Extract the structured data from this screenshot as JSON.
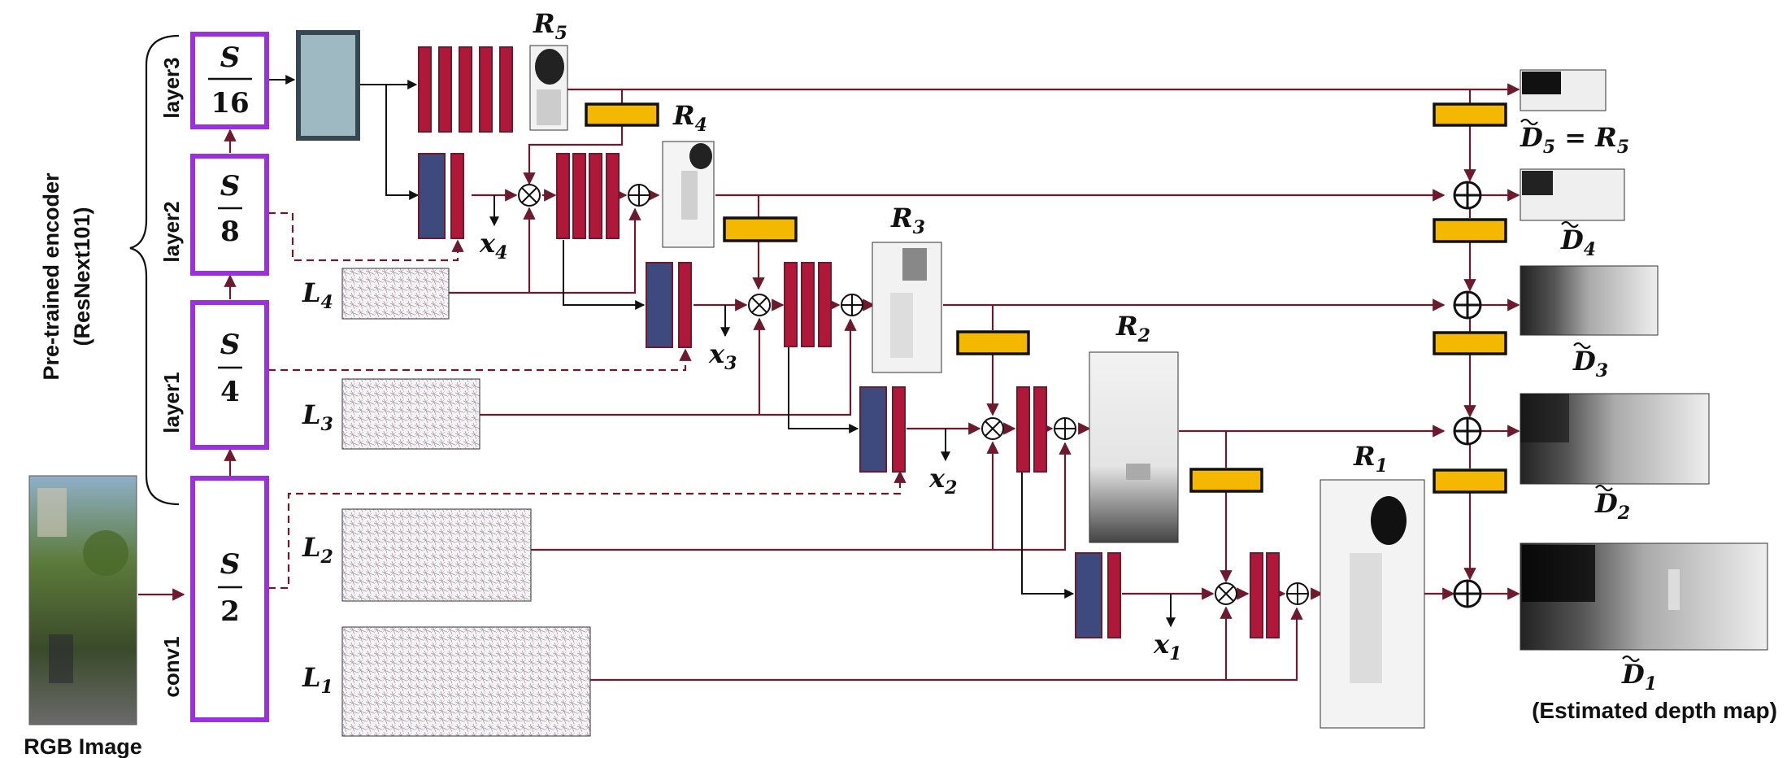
{
  "input": {
    "label": "RGB Image"
  },
  "encoder": {
    "brace_label_1": "Pre-trained encoder",
    "brace_label_2": "(ResNext101)",
    "layers": [
      {
        "name": "conv1",
        "num": "S",
        "den": "2"
      },
      {
        "name": "layer1",
        "num": "S",
        "den": "4"
      },
      {
        "name": "layer2",
        "num": "S",
        "den": "8"
      },
      {
        "name": "layer3",
        "num": "S",
        "den": "16"
      }
    ]
  },
  "laplacian": [
    {
      "base": "L",
      "sub": "4"
    },
    {
      "base": "L",
      "sub": "3"
    },
    {
      "base": "L",
      "sub": "2"
    },
    {
      "base": "L",
      "sub": "1"
    }
  ],
  "residuals": [
    {
      "base": "R",
      "sub": "5"
    },
    {
      "base": "R",
      "sub": "4"
    },
    {
      "base": "R",
      "sub": "3"
    },
    {
      "base": "R",
      "sub": "2"
    },
    {
      "base": "R",
      "sub": "1"
    }
  ],
  "features": [
    {
      "base": "x",
      "sub": "4"
    },
    {
      "base": "x",
      "sub": "3"
    },
    {
      "base": "x",
      "sub": "2"
    },
    {
      "base": "x",
      "sub": "1"
    }
  ],
  "outputs": [
    {
      "base": "D",
      "sub": "5",
      "suffix": " = R",
      "suffix_sub": "5"
    },
    {
      "base": "D",
      "sub": "4"
    },
    {
      "base": "D",
      "sub": "3"
    },
    {
      "base": "D",
      "sub": "2"
    },
    {
      "base": "D",
      "sub": "1"
    }
  ],
  "output_caption": "(Estimated depth map)",
  "colors": {
    "arrow": "#6d1a2e",
    "conv_block": "#b0183a",
    "feature_block": "#3e4a7e",
    "upsample_block": "#f5b800",
    "encoder_border": "#9b30e0",
    "bottleneck": "#9fb9c2",
    "bottleneck_border": "#37474f"
  }
}
